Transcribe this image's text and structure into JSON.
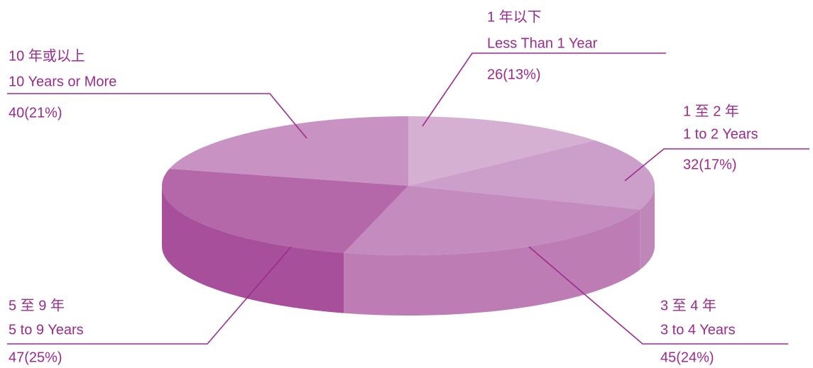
{
  "chart_data": {
    "type": "pie",
    "categories_zh": [
      "1 年以下",
      "1 至 2 年",
      "3 至 4 年",
      "5 至 9 年",
      "10 年或以上"
    ],
    "categories": [
      "Less Than 1 Year",
      "1 to 2 Years",
      "3 to 4 Years",
      "5 to 9 Years",
      "10 Years or More"
    ],
    "values": [
      26,
      32,
      45,
      47,
      40
    ],
    "value_labels": [
      "26(13%)",
      "32(17%)",
      "45(24%)",
      "47(25%)",
      "40(21%)"
    ],
    "colors": [
      "#d5b0d3",
      "#cc9fca",
      "#c38bbe",
      "#b468a9",
      "#c893c3"
    ],
    "side_colors": [
      "#c59bc2",
      "#bf86b8",
      "#bd7db4",
      "#a84f9b",
      "#b77aae"
    ]
  }
}
